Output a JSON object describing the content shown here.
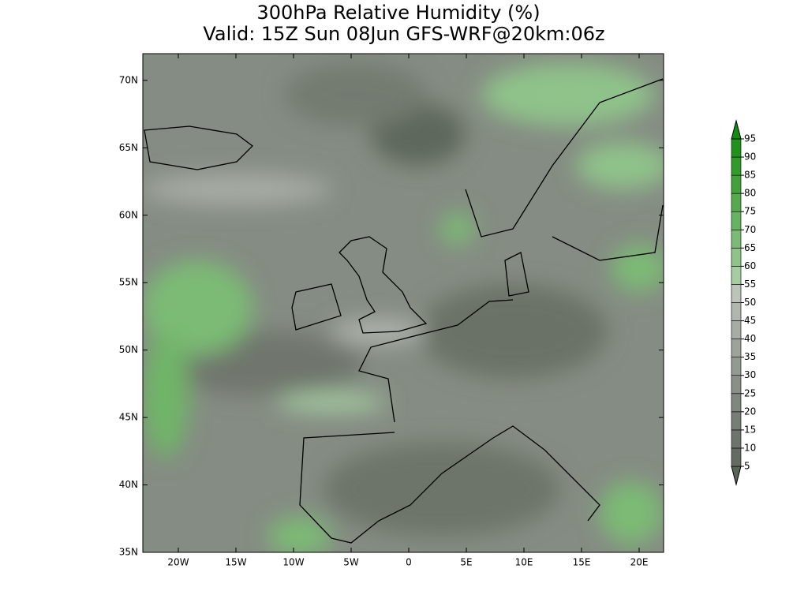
{
  "header": {
    "title": "300hPa Relative Humidity (%)",
    "subtitle": "Valid: 15Z Sun 08Jun GFS-WRF@20km:06z"
  },
  "map": {
    "lat_ticks": [
      {
        "value": 70,
        "label": "70N"
      },
      {
        "value": 65,
        "label": "65N"
      },
      {
        "value": 60,
        "label": "60N"
      },
      {
        "value": 55,
        "label": "55N"
      },
      {
        "value": 50,
        "label": "50N"
      },
      {
        "value": 45,
        "label": "45N"
      },
      {
        "value": 40,
        "label": "40N"
      },
      {
        "value": 35,
        "label": "35N"
      }
    ],
    "lon_ticks": [
      {
        "value": -20,
        "label": "20W"
      },
      {
        "value": -15,
        "label": "15W"
      },
      {
        "value": -10,
        "label": "10W"
      },
      {
        "value": -5,
        "label": "5W"
      },
      0,
      {
        "value": 5,
        "label": "5E"
      },
      {
        "value": 10,
        "label": "10E"
      },
      {
        "value": 15,
        "label": "15E"
      },
      {
        "value": 20,
        "label": "20E"
      }
    ]
  },
  "colorbar": {
    "levels": [
      5,
      10,
      15,
      20,
      25,
      30,
      35,
      40,
      45,
      50,
      55,
      60,
      65,
      70,
      75,
      80,
      85,
      90,
      95
    ],
    "colors": [
      "#5a6358",
      "#646b62",
      "#6d746b",
      "#777e75",
      "#80877e",
      "#8a9088",
      "#939a91",
      "#9da39b",
      "#a7ada5",
      "#b1b7af",
      "#bcc4b9",
      "#a6cca2",
      "#8fc38a",
      "#7bbb75",
      "#68b361",
      "#55aa4d",
      "#42a13a",
      "#309a2a",
      "#1f921c",
      "#138b10"
    ]
  }
}
